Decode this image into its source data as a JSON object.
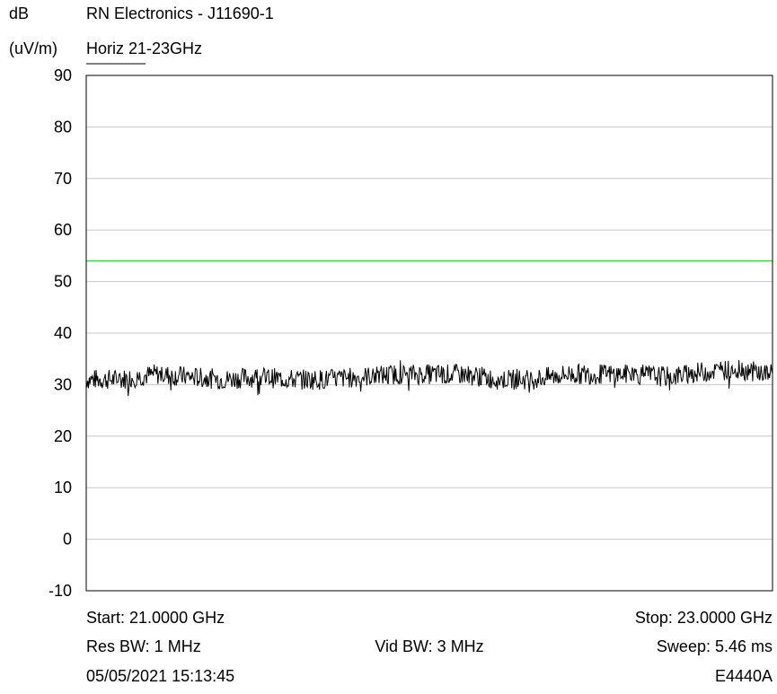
{
  "header": {
    "unit_top": "dB",
    "unit_bottom": "(uV/m)",
    "title": "RN Electronics - J11690-1",
    "subtitle": "Horiz 21-23GHz"
  },
  "footer": {
    "start": "Start: 21.0000 GHz",
    "stop": "Stop: 23.0000 GHz",
    "res_bw": "Res BW: 1 MHz",
    "vid_bw": "Vid BW: 3 MHz",
    "sweep": "Sweep: 5.46 ms",
    "timestamp": "05/05/2021 15:13:45",
    "model": "E4440A"
  },
  "chart_data": {
    "type": "line",
    "title": "RN Electronics - J11690-1",
    "subtitle": "Horiz 21-23GHz",
    "ylabel": "dB (uV/m)",
    "xlim": [
      21.0,
      23.0
    ],
    "ylim": [
      -10,
      90
    ],
    "y_ticks": [
      "90",
      "80",
      "70",
      "60",
      "50",
      "40",
      "30",
      "20",
      "10",
      "0",
      "-10"
    ],
    "grid": true,
    "legend": "none",
    "series": [
      {
        "color": "#000000",
        "x": [
          21.0,
          21.1,
          21.2,
          21.3,
          21.4,
          21.5,
          21.6,
          21.7,
          21.8,
          21.9,
          22.0,
          22.1,
          22.2,
          22.3,
          22.4,
          22.5,
          22.6,
          22.7,
          22.8,
          22.9,
          23.0
        ],
        "values": [
          31,
          31,
          32,
          31.5,
          31,
          31.5,
          31,
          31,
          31.5,
          32,
          32,
          32,
          31,
          31,
          32,
          32,
          32,
          31.5,
          32.5,
          33,
          32
        ]
      },
      {
        "color": "#3dd63d",
        "x": [
          21.0,
          23.0
        ],
        "values": [
          54,
          54
        ]
      }
    ]
  }
}
